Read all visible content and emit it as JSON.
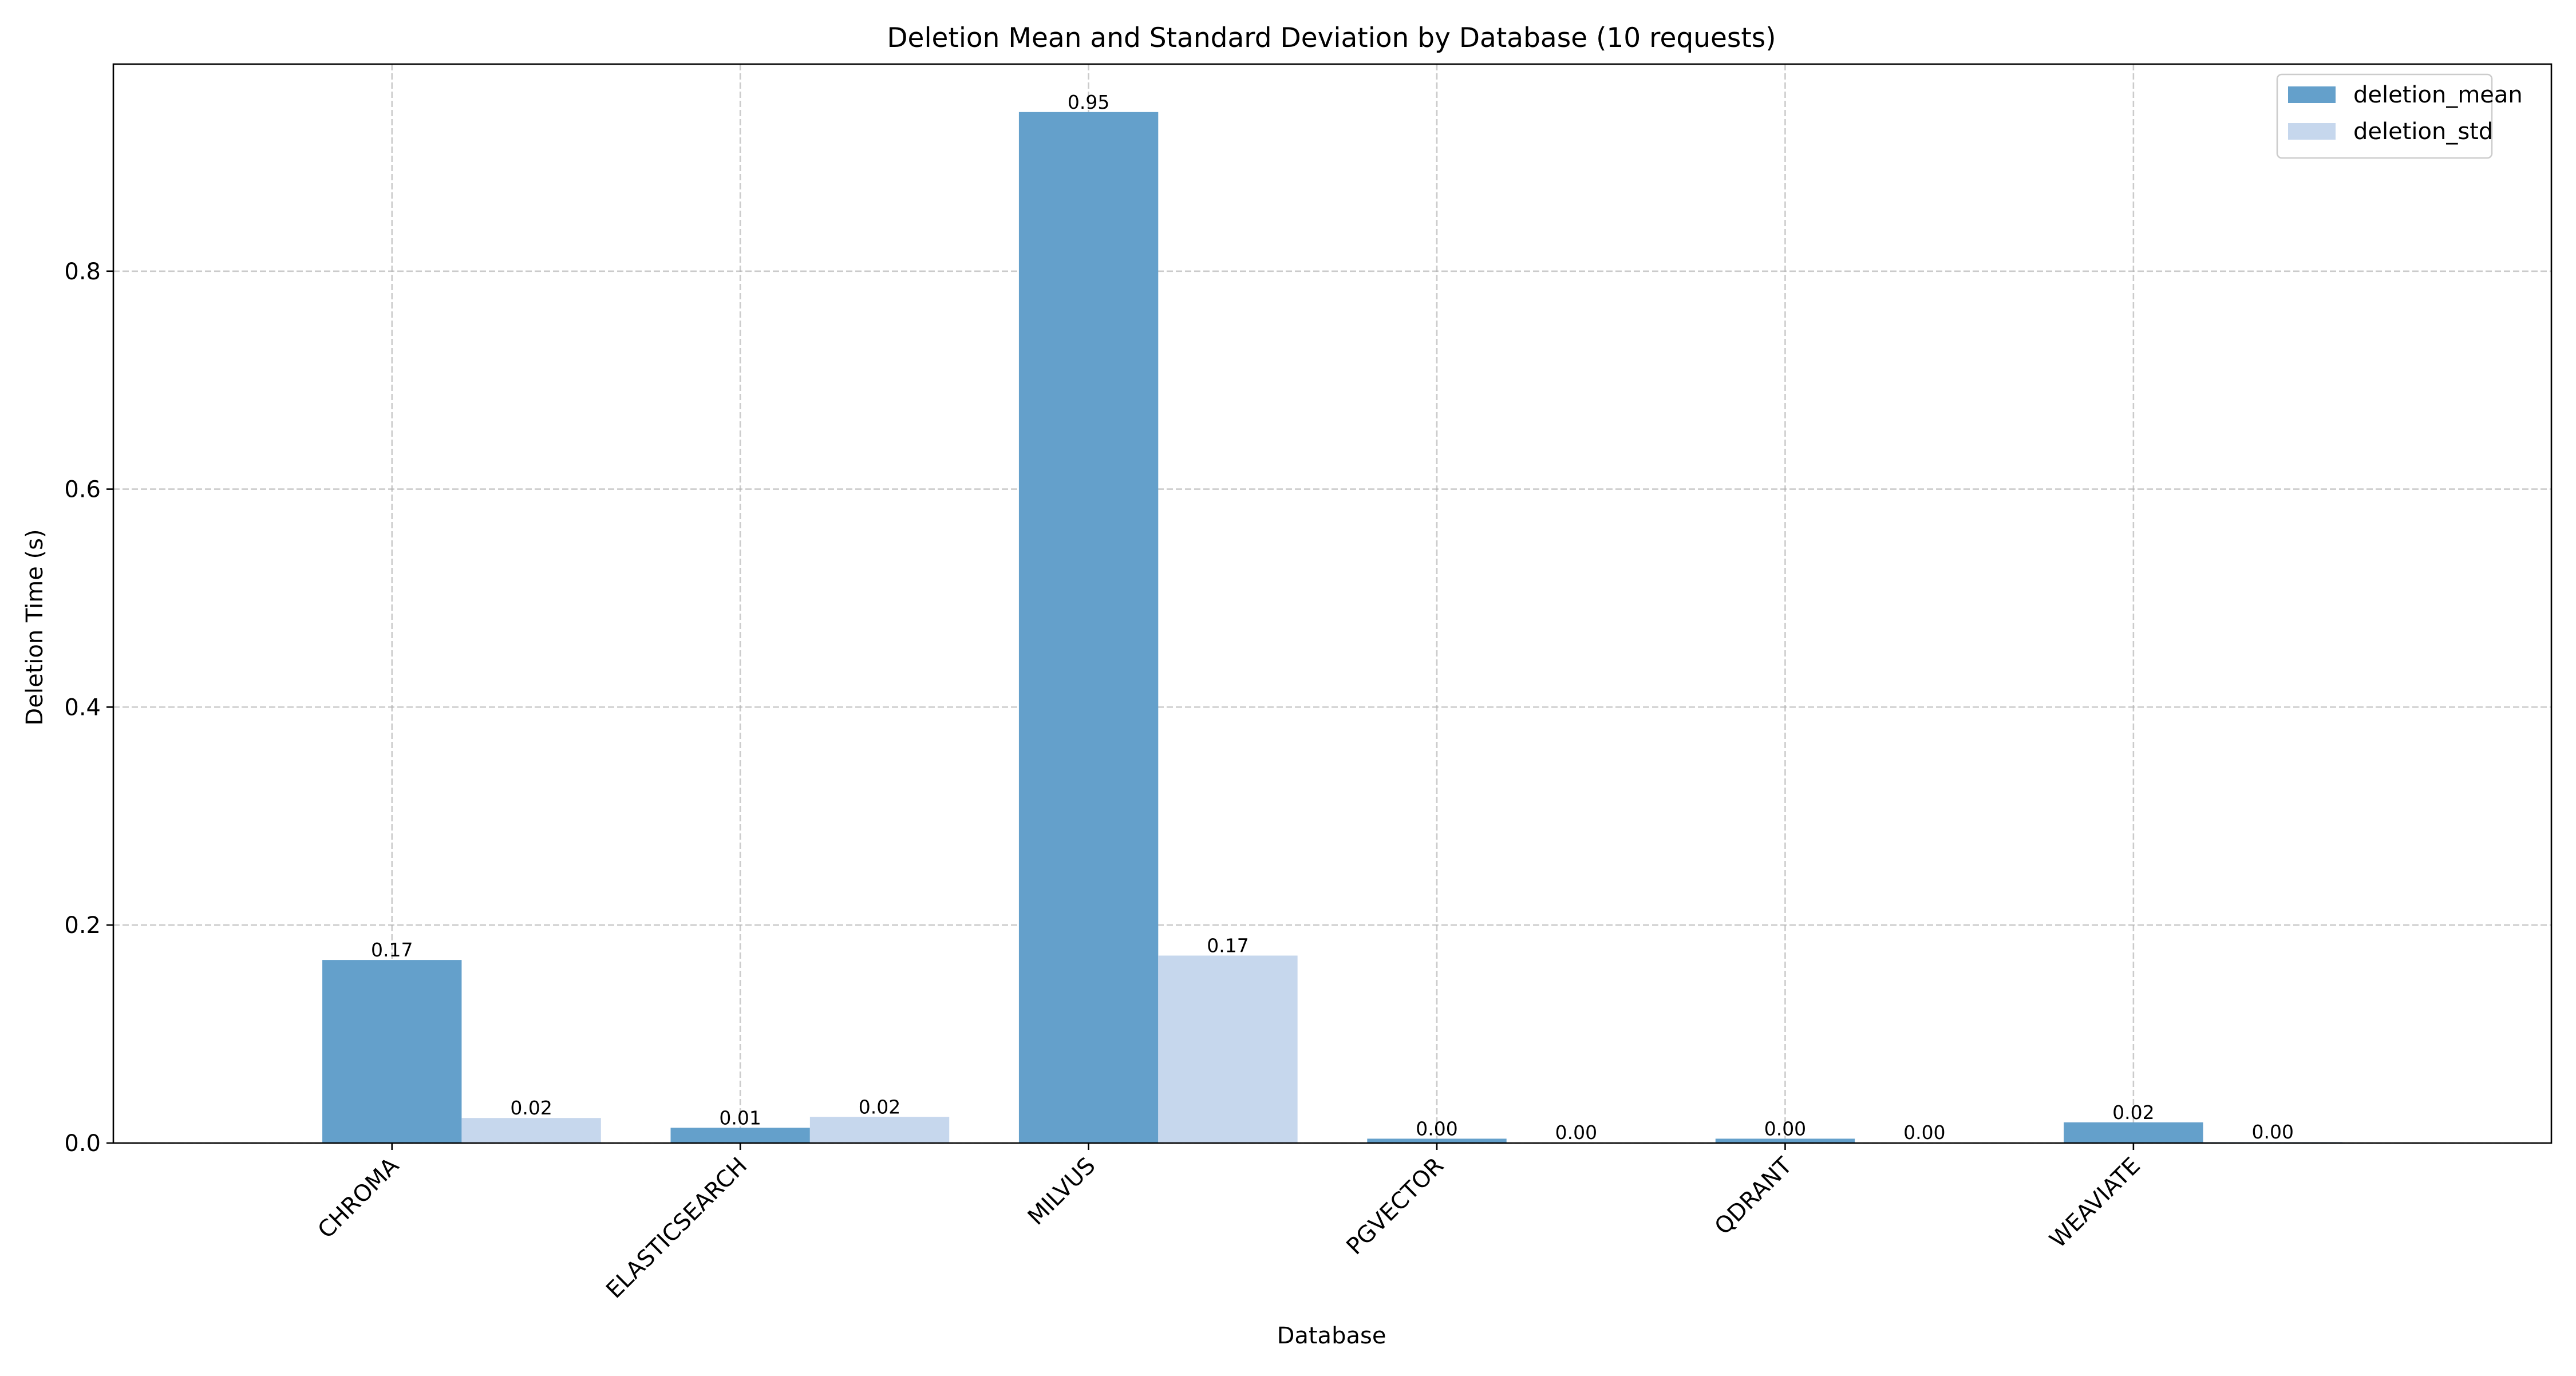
{
  "chart_data": {
    "type": "bar",
    "title": "Deletion Mean and Standard Deviation by Database (10 requests)",
    "xlabel": "Database",
    "ylabel": "Deletion Time (s)",
    "categories": [
      "CHROMA",
      "ELASTICSEARCH",
      "MILVUS",
      "PGVECTOR",
      "QDRANT",
      "WEAVIATE"
    ],
    "series": [
      {
        "name": "deletion_mean",
        "color": "#64a0cb",
        "values": [
          0.168,
          0.014,
          0.946,
          0.004,
          0.004,
          0.019
        ],
        "labels": [
          "0.17",
          "0.01",
          "0.95",
          "0.00",
          "0.00",
          "0.02"
        ]
      },
      {
        "name": "deletion_std",
        "color": "#c6d7ed",
        "values": [
          0.023,
          0.024,
          0.172,
          0.0005,
          0.0005,
          0.001
        ],
        "labels": [
          "0.02",
          "0.02",
          "0.17",
          "0.00",
          "0.00",
          "0.00"
        ]
      }
    ],
    "ylim": [
      0,
      0.99
    ],
    "yticks": [
      0.0,
      0.2,
      0.4,
      0.6,
      0.8
    ],
    "ytick_labels": [
      "0.0",
      "0.2",
      "0.4",
      "0.6",
      "0.8"
    ],
    "grid": true,
    "legend_position": "top-right"
  }
}
